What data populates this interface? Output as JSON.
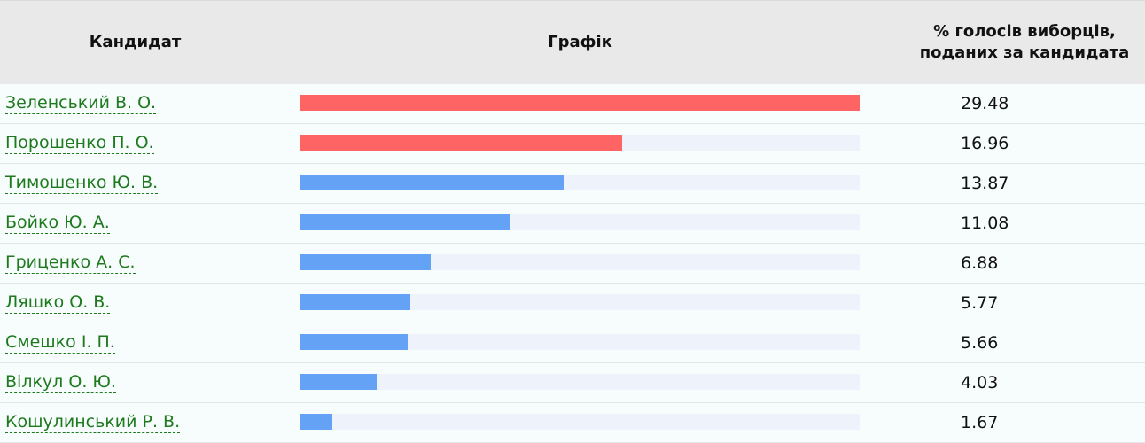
{
  "table": {
    "header": {
      "candidate": "Кандидат",
      "chart": "Графік",
      "percent_line1": "% голосів виборців,",
      "percent_line2": "поданих за кандидата"
    }
  },
  "colors": {
    "leading_bar": "#ff6464",
    "other_bar": "#63a2f5",
    "link": "#1d7a1d"
  },
  "chart_data": {
    "type": "bar",
    "orientation": "horizontal",
    "title": "",
    "xlabel": "",
    "ylabel": "",
    "scale_max": 29.48,
    "grid": false,
    "categories": [
      "Зеленський В. О.",
      "Порошенко П. О.",
      "Тимошенко Ю. В.",
      "Бойко Ю. А.",
      "Гриценко А. С.",
      "Ляшко О. В.",
      "Смешко І. П.",
      "Вілкул О. Ю.",
      "Кошулинський Р. В."
    ],
    "values": [
      29.48,
      16.96,
      13.87,
      11.08,
      6.88,
      5.77,
      5.66,
      4.03,
      1.67
    ],
    "value_labels": [
      "29.48",
      "16.96",
      "13.87",
      "11.08",
      "6.88",
      "5.77",
      "5.66",
      "4.03",
      "1.67"
    ],
    "highlighted": [
      true,
      true,
      false,
      false,
      false,
      false,
      false,
      false,
      false
    ]
  }
}
